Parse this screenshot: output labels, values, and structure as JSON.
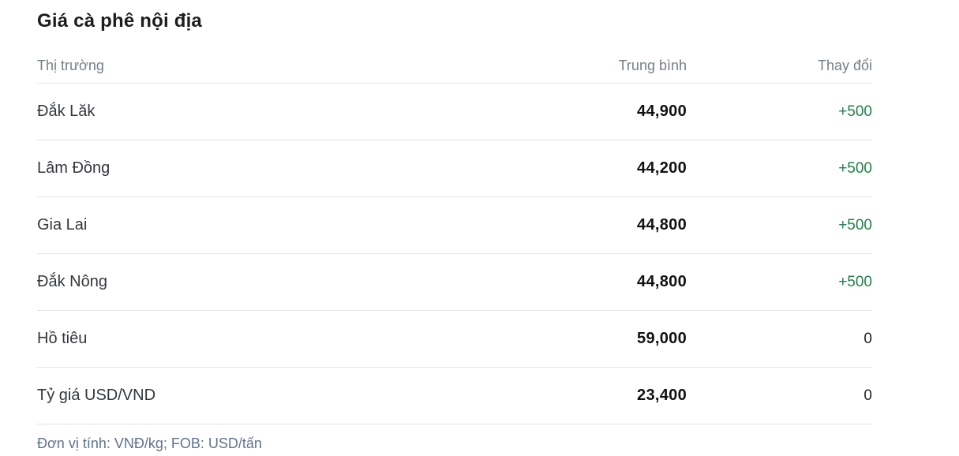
{
  "page": {
    "title": "Giá cà phê nội địa",
    "footer_note": "Đơn vị tính: VNĐ/kg; FOB: USD/tấn"
  },
  "table": {
    "columns": [
      {
        "key": "market",
        "label": "Thị trường",
        "align": "left"
      },
      {
        "key": "average",
        "label": "Trung bình",
        "align": "right"
      },
      {
        "key": "change",
        "label": "Thay đổi",
        "align": "right"
      }
    ],
    "rows": [
      {
        "market": "Đắk Lăk",
        "average": "44,900",
        "change": "+500",
        "change_direction": "up"
      },
      {
        "market": "Lâm Đồng",
        "average": "44,200",
        "change": "+500",
        "change_direction": "up"
      },
      {
        "market": "Gia Lai",
        "average": "44,800",
        "change": "+500",
        "change_direction": "up"
      },
      {
        "market": "Đắk Nông",
        "average": "44,800",
        "change": "+500",
        "change_direction": "up"
      },
      {
        "market": "Hồ tiêu",
        "average": "59,000",
        "change": "0",
        "change_direction": "none"
      },
      {
        "market": "Tỷ giá USD/VND",
        "average": "23,400",
        "change": "0",
        "change_direction": "none"
      }
    ]
  },
  "colors": {
    "positive_change": "#22804a",
    "neutral_change": "#21242b",
    "header_text": "#757f88",
    "title_text": "#1d1d1f",
    "label_text": "#33373d",
    "value_text": "#111111",
    "footer_text": "#5f738c",
    "divider": "#e2e4e7",
    "background": "#ffffff"
  }
}
